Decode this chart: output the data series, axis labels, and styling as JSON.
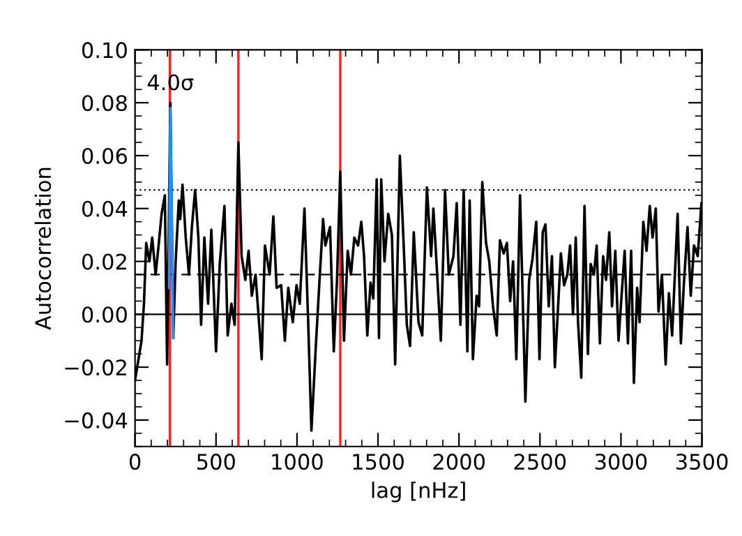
{
  "chart_data": {
    "type": "line",
    "xlabel": "lag [nHz]",
    "ylabel": "Autocorrelation",
    "xlim": [
      0,
      3500
    ],
    "ylim": [
      -0.05,
      0.1
    ],
    "xticks": [
      0,
      500,
      1000,
      1500,
      2000,
      2500,
      3000,
      3500
    ],
    "yticks": [
      {
        "value": -0.04,
        "label": "−0.04"
      },
      {
        "value": -0.02,
        "label": "−0.02"
      },
      {
        "value": 0.0,
        "label": "0.00"
      },
      {
        "value": 0.02,
        "label": "0.02"
      },
      {
        "value": 0.04,
        "label": "0.04"
      },
      {
        "value": 0.06,
        "label": "0.06"
      },
      {
        "value": 0.08,
        "label": "0.08"
      },
      {
        "value": 0.1,
        "label": "0.10"
      }
    ],
    "grid": false,
    "legend": false,
    "marker": "none",
    "series": [
      {
        "color": "#000000",
        "line_style": "solid",
        "x": [
          0,
          40,
          55,
          69,
          89,
          106,
          127,
          147,
          164,
          184,
          198,
          218,
          236,
          250,
          270,
          279,
          293,
          313,
          333,
          351,
          371,
          391,
          408,
          428,
          451,
          471,
          500,
          523,
          552,
          572,
          595,
          615,
          638,
          658,
          681,
          701,
          721,
          744,
          782,
          802,
          831,
          854,
          874,
          902,
          925,
          946,
          974,
          997,
          1017,
          1046,
          1069,
          1089,
          1118,
          1141,
          1161,
          1175,
          1204,
          1227,
          1247,
          1267,
          1290,
          1313,
          1333,
          1354,
          1377,
          1397,
          1414,
          1434,
          1454,
          1471,
          1492,
          1506,
          1520,
          1540,
          1563,
          1586,
          1606,
          1635,
          1658,
          1678,
          1698,
          1721,
          1750,
          1773,
          1802,
          1828,
          1842,
          1859,
          1888,
          1914,
          1937,
          1966,
          1986,
          2009,
          2029,
          2052,
          2066,
          2086,
          2109,
          2124,
          2144,
          2167,
          2187,
          2210,
          2233,
          2253,
          2276,
          2296,
          2316,
          2334,
          2354,
          2377,
          2410,
          2433,
          2454,
          2477,
          2497,
          2517,
          2534,
          2554,
          2574,
          2592,
          2612,
          2629,
          2649,
          2669,
          2686,
          2704,
          2721,
          2735,
          2755,
          2775,
          2796,
          2813,
          2833,
          2850,
          2870,
          2890,
          2908,
          2928,
          2945,
          2965,
          2985,
          3005,
          3023,
          3043,
          3063,
          3080,
          3100,
          3115,
          3138,
          3158,
          3178,
          3195,
          3215,
          3232,
          3253,
          3276,
          3296,
          3316,
          3350,
          3370,
          3388,
          3411,
          3431,
          3451,
          3474,
          3497
        ],
        "values": [
          -0.025,
          -0.01,
          0.004,
          0.027,
          0.02,
          0.029,
          0.015,
          0.027,
          0.038,
          0.045,
          -0.019,
          0.08,
          -0.009,
          0.019,
          0.043,
          0.036,
          0.049,
          0.029,
          0.015,
          0.033,
          0.047,
          0.029,
          -0.004,
          0.029,
          0.004,
          0.032,
          -0.014,
          0.019,
          0.041,
          -0.008,
          0.004,
          -0.004,
          0.065,
          0.022,
          0.013,
          0.024,
          0.007,
          0.015,
          -0.017,
          0.026,
          0.015,
          0.037,
          0.01,
          0.011,
          -0.01,
          0.01,
          -0.003,
          0.011,
          0.004,
          0.04,
          -0.003,
          -0.044,
          -0.01,
          0.015,
          0.036,
          0.026,
          0.033,
          -0.014,
          0.013,
          0.054,
          -0.01,
          0.024,
          0.015,
          0.029,
          0.026,
          0.035,
          0.022,
          -0.008,
          0.012,
          0.006,
          0.051,
          -0.009,
          0.051,
          0.02,
          0.038,
          0.03,
          -0.019,
          0.06,
          0.027,
          -0.004,
          -0.012,
          0.031,
          -0.003,
          -0.008,
          0.048,
          0.022,
          0.04,
          0.022,
          -0.01,
          0.047,
          0.015,
          0.022,
          0.042,
          -0.004,
          0.047,
          -0.014,
          0.043,
          -0.017,
          0.007,
          0.003,
          0.05,
          0.027,
          0.02,
          0.003,
          -0.008,
          0.028,
          0.023,
          0.027,
          0.005,
          0.02,
          -0.017,
          0.045,
          -0.033,
          0.013,
          0.021,
          0.035,
          -0.017,
          0.031,
          0.034,
          0.003,
          0.022,
          -0.02,
          0.003,
          0.023,
          0.011,
          0.015,
          0.026,
          0.0,
          0.029,
          -0.003,
          -0.024,
          0.041,
          -0.015,
          0.019,
          0.015,
          0.026,
          -0.011,
          0.022,
          0.013,
          0.031,
          0.003,
          0.024,
          -0.01,
          0.008,
          0.024,
          -0.011,
          0.024,
          -0.026,
          0.01,
          -0.003,
          0.035,
          0.024,
          0.041,
          0.029,
          0.04,
          0.001,
          0.015,
          -0.019,
          0.008,
          -0.008,
          0.038,
          -0.011,
          0.011,
          0.033,
          0.007,
          0.026,
          0.022,
          0.042
        ]
      },
      {
        "color": "#1e90ff",
        "line_style": "solid",
        "x": [
          210,
          218,
          236
        ],
        "values": [
          0.01,
          0.078,
          -0.009
        ]
      }
    ],
    "ref_lines": [
      {
        "axis": "x",
        "value": 215,
        "color": "#ff2020",
        "line_style": "solid"
      },
      {
        "axis": "x",
        "value": 638,
        "color": "#ff2020",
        "line_style": "solid"
      },
      {
        "axis": "x",
        "value": 1267,
        "color": "#ff2020",
        "line_style": "solid"
      },
      {
        "axis": "y",
        "value": 0.0,
        "color": "#000000",
        "line_style": "solid"
      },
      {
        "axis": "y",
        "value": 0.015,
        "color": "#000000",
        "line_style": "dashed"
      },
      {
        "axis": "y",
        "value": 0.047,
        "color": "#000000",
        "line_style": "dotted"
      }
    ],
    "annotations": [
      {
        "text": "4.0σ",
        "x": 218,
        "y": 0.087
      }
    ]
  }
}
